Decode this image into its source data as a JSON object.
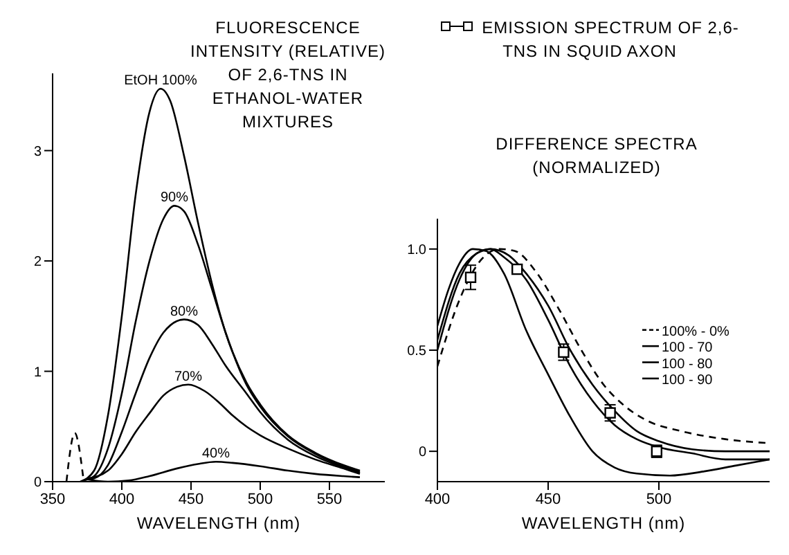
{
  "chart_data": [
    {
      "type": "line",
      "title": "FLUORESCENCE INTENSITY (RELATIVE) OF 2,6-TNS IN ETHANOL-WATER MIXTURES",
      "xlabel": "WAVELENGTH (nm)",
      "xlim": [
        350,
        590
      ],
      "ylim": [
        0,
        3.7
      ],
      "xticks": [
        350,
        400,
        450,
        500,
        550
      ],
      "yticks": [
        0,
        1,
        2,
        3
      ],
      "grid": false,
      "series": [
        {
          "name": "EtOH 100%",
          "color": "#000000",
          "x": [
            370,
            380,
            390,
            400,
            410,
            420,
            428,
            435,
            445,
            455,
            465,
            475,
            490,
            500,
            520,
            540,
            560,
            572
          ],
          "values": [
            0,
            0.1,
            0.6,
            1.5,
            2.6,
            3.35,
            3.56,
            3.45,
            2.95,
            2.35,
            1.8,
            1.35,
            0.9,
            0.7,
            0.42,
            0.26,
            0.15,
            0.1
          ]
        },
        {
          "name": "90%",
          "color": "#000000",
          "x": [
            372,
            380,
            390,
            400,
            410,
            420,
            430,
            438,
            445,
            455,
            465,
            475,
            490,
            500,
            520,
            540,
            560,
            572
          ],
          "values": [
            0.01,
            0.05,
            0.3,
            0.8,
            1.45,
            2.0,
            2.38,
            2.5,
            2.45,
            2.15,
            1.75,
            1.35,
            0.88,
            0.68,
            0.41,
            0.25,
            0.14,
            0.09
          ]
        },
        {
          "name": "80%",
          "color": "#000000",
          "x": [
            374,
            380,
            390,
            400,
            410,
            420,
            430,
            445,
            455,
            465,
            475,
            490,
            500,
            520,
            540,
            560,
            572
          ],
          "values": [
            0.02,
            0.03,
            0.15,
            0.45,
            0.8,
            1.12,
            1.35,
            1.47,
            1.42,
            1.25,
            1.05,
            0.8,
            0.63,
            0.38,
            0.23,
            0.13,
            0.08
          ]
        },
        {
          "name": "70%",
          "color": "#000000",
          "x": [
            376,
            390,
            400,
            410,
            420,
            430,
            440,
            448,
            460,
            470,
            480,
            490,
            500,
            520,
            540,
            560,
            572
          ],
          "values": [
            0.03,
            0.1,
            0.25,
            0.45,
            0.62,
            0.78,
            0.86,
            0.88,
            0.82,
            0.72,
            0.6,
            0.5,
            0.42,
            0.3,
            0.2,
            0.12,
            0.07
          ]
        },
        {
          "name": "40%",
          "color": "#000000",
          "x": [
            375,
            390,
            405,
            420,
            440,
            455,
            468,
            480,
            500,
            520,
            540,
            560,
            572
          ],
          "values": [
            0.02,
            0,
            0.01,
            0.05,
            0.12,
            0.16,
            0.18,
            0.17,
            0.14,
            0.1,
            0.07,
            0.05,
            0.04
          ]
        },
        {
          "color": "#000000",
          "line_style": "dashed",
          "x": [
            360,
            366,
            372
          ],
          "values": [
            0,
            0.44,
            0.05
          ]
        }
      ]
    },
    {
      "type": "line",
      "title": "DIFFERENCE SPECTRA (NORMALIZED)",
      "xlabel": "WAVELENGTH (nm)",
      "xlim": [
        400,
        550
      ],
      "ylim": [
        -0.15,
        1.15
      ],
      "xticks": [
        400,
        450,
        500
      ],
      "yticks": [
        0,
        0.5,
        {
          "value": 1,
          "label": "1.0"
        }
      ],
      "grid": false,
      "legend": "top",
      "series": [
        {
          "name": "100% - 0%",
          "color": "#000000",
          "line_style": "dashed",
          "x": [
            400,
            410,
            420,
            428,
            435,
            445,
            455,
            465,
            475,
            485,
            495,
            510,
            530,
            550
          ],
          "values": [
            0.42,
            0.75,
            0.95,
            1.0,
            0.99,
            0.88,
            0.7,
            0.5,
            0.33,
            0.22,
            0.15,
            0.1,
            0.06,
            0.04
          ]
        },
        {
          "name": "100 - 70",
          "color": "#000000",
          "x": [
            400,
            410,
            418,
            424,
            432,
            440,
            450,
            460,
            470,
            480,
            490,
            500,
            515,
            530,
            550
          ],
          "values": [
            0.55,
            0.88,
            0.98,
            1.0,
            0.97,
            0.88,
            0.72,
            0.5,
            0.33,
            0.2,
            0.1,
            0.05,
            0.01,
            0,
            0
          ]
        },
        {
          "name": "100 - 80",
          "color": "#000000",
          "x": [
            400,
            410,
            418,
            424,
            430,
            440,
            450,
            460,
            470,
            480,
            490,
            500,
            515,
            530,
            550
          ],
          "values": [
            0.5,
            0.85,
            0.98,
            1.0,
            0.96,
            0.85,
            0.65,
            0.42,
            0.25,
            0.13,
            0.06,
            0.02,
            -0.01,
            -0.04,
            -0.04
          ]
        },
        {
          "name": "100 - 90",
          "color": "#000000",
          "x": [
            400,
            405,
            410,
            416,
            422,
            430,
            440,
            450,
            460,
            470,
            480,
            490,
            505,
            520,
            535,
            550
          ],
          "values": [
            0.62,
            0.8,
            0.93,
            1.0,
            0.99,
            0.88,
            0.6,
            0.38,
            0.17,
            0,
            -0.08,
            -0.11,
            -0.12,
            -0.1,
            -0.07,
            -0.04
          ]
        },
        {
          "name": "EMISSION SPECTRUM OF 2,6-TNS IN SQUID AXON",
          "type": "scatter",
          "marker": "square",
          "color": "#000000",
          "x": [
            415,
            436,
            457,
            478,
            499
          ],
          "values": [
            0.86,
            0.9,
            0.49,
            0.19,
            0
          ],
          "errors": [
            0.06,
            null,
            0.04,
            0.04,
            0.03
          ]
        }
      ]
    }
  ]
}
